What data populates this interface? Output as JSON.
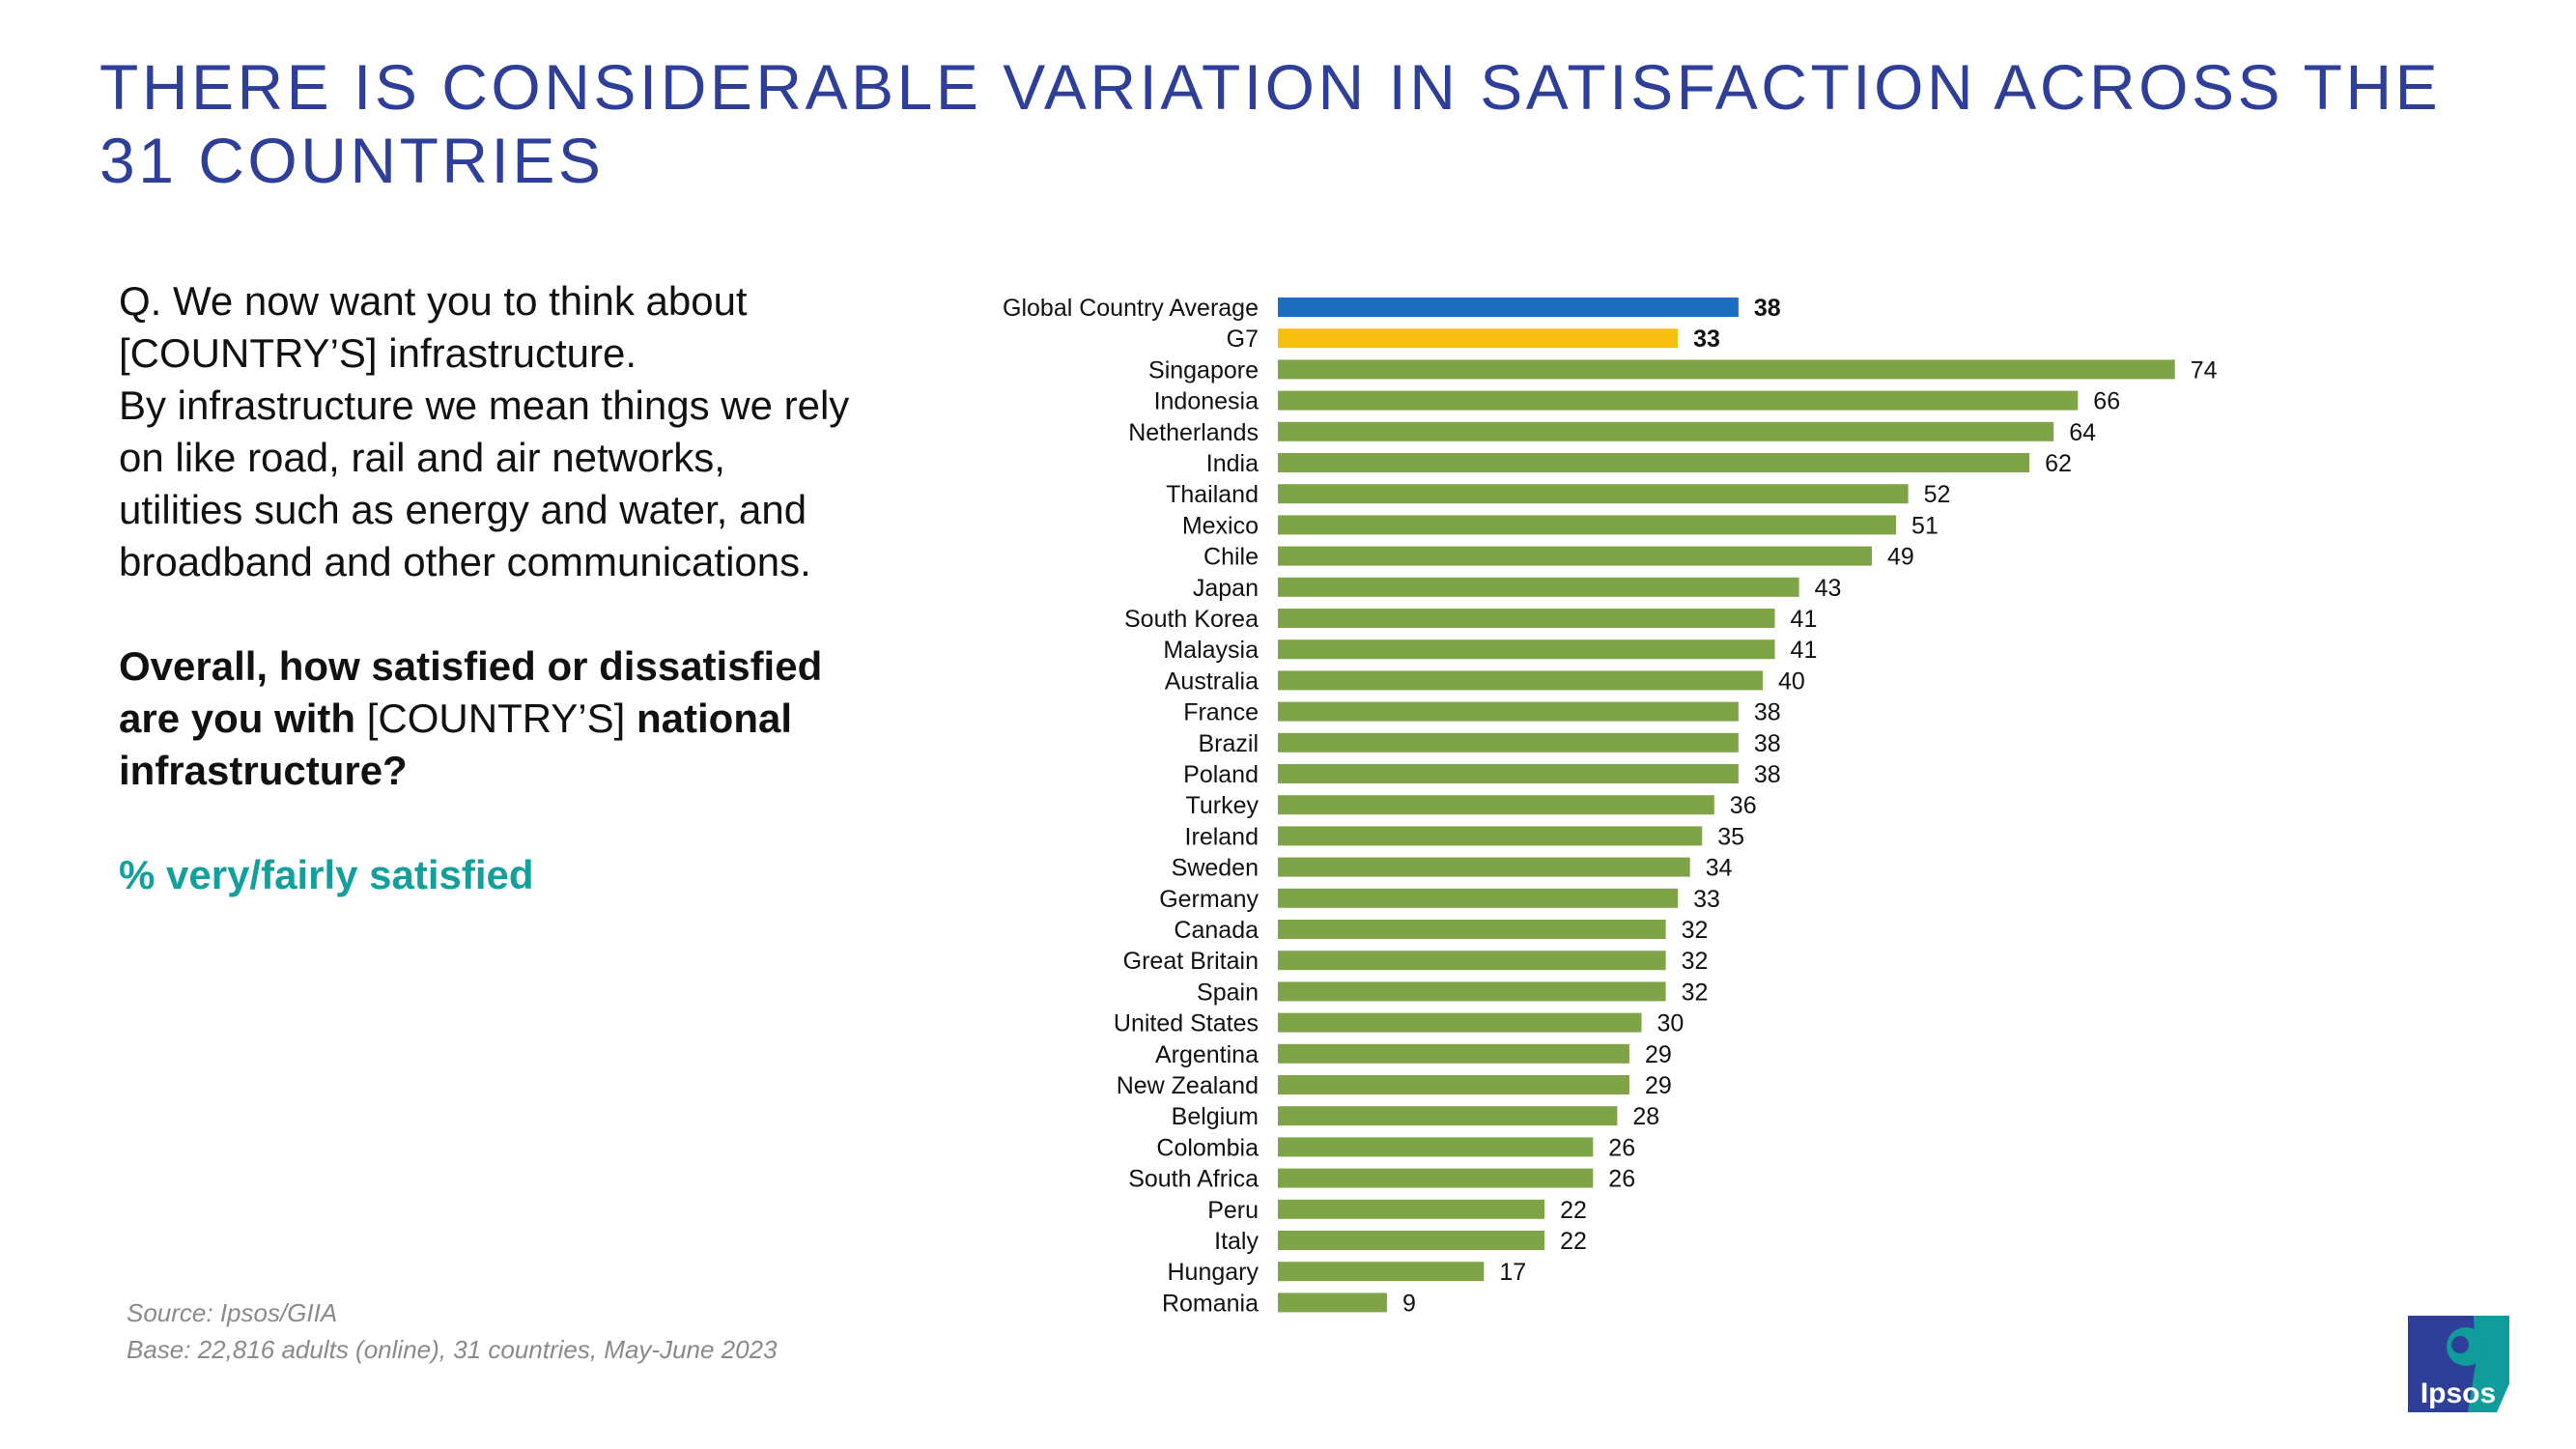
{
  "title": "THERE IS CONSIDERABLE VARIATION IN SATISFACTION ACROSS THE 31 COUNTRIES",
  "question": {
    "line1": "Q. We now want you to think about [COUNTRY’S] infrastructure.",
    "line2": "By infrastructure we mean things we rely on like road, rail and air networks, utilities such as energy and water, and broadband and other communications.",
    "bold_part1": "Overall, how satisfied or dissatisfied are you with",
    "plain_part": "[COUNTRY’S]",
    "bold_part2": "national infrastructure?",
    "metric": "% very/fairly satisfied"
  },
  "source": {
    "line1": "Source: Ipsos/GIIA",
    "line2": "Base: 22,816 adults (online), 31 countries, May-June 2023"
  },
  "logo": {
    "text": "Ipsos",
    "color": "#0f9c9a",
    "accent": "#2e3f9a"
  },
  "colors": {
    "title": "#2e3f9a",
    "average": "#1c6fbf",
    "g7": "#f5c010",
    "country": "#7fa347",
    "metric": "#13a09d"
  },
  "chart_data": {
    "type": "bar",
    "orientation": "horizontal",
    "title": "",
    "xlabel": "",
    "ylabel": "",
    "xlim": [
      0,
      80
    ],
    "grid": false,
    "categories": [
      "Global Country Average",
      "G7",
      "Singapore",
      "Indonesia",
      "Netherlands",
      "India",
      "Thailand",
      "Mexico",
      "Chile",
      "Japan",
      "South Korea",
      "Malaysia",
      "Australia",
      "France",
      "Brazil",
      "Poland",
      "Turkey",
      "Ireland",
      "Sweden",
      "Germany",
      "Canada",
      "Great Britain",
      "Spain",
      "United States",
      "Argentina",
      "New Zealand",
      "Belgium",
      "Colombia",
      "South Africa",
      "Peru",
      "Italy",
      "Hungary",
      "Romania"
    ],
    "values": [
      38,
      33,
      74,
      66,
      64,
      62,
      52,
      51,
      49,
      43,
      41,
      41,
      40,
      38,
      38,
      38,
      36,
      35,
      34,
      33,
      32,
      32,
      32,
      30,
      29,
      29,
      28,
      26,
      26,
      22,
      22,
      17,
      9
    ],
    "bar_kind": [
      "average",
      "g7",
      "country",
      "country",
      "country",
      "country",
      "country",
      "country",
      "country",
      "country",
      "country",
      "country",
      "country",
      "country",
      "country",
      "country",
      "country",
      "country",
      "country",
      "country",
      "country",
      "country",
      "country",
      "country",
      "country",
      "country",
      "country",
      "country",
      "country",
      "country",
      "country",
      "country",
      "country"
    ]
  }
}
